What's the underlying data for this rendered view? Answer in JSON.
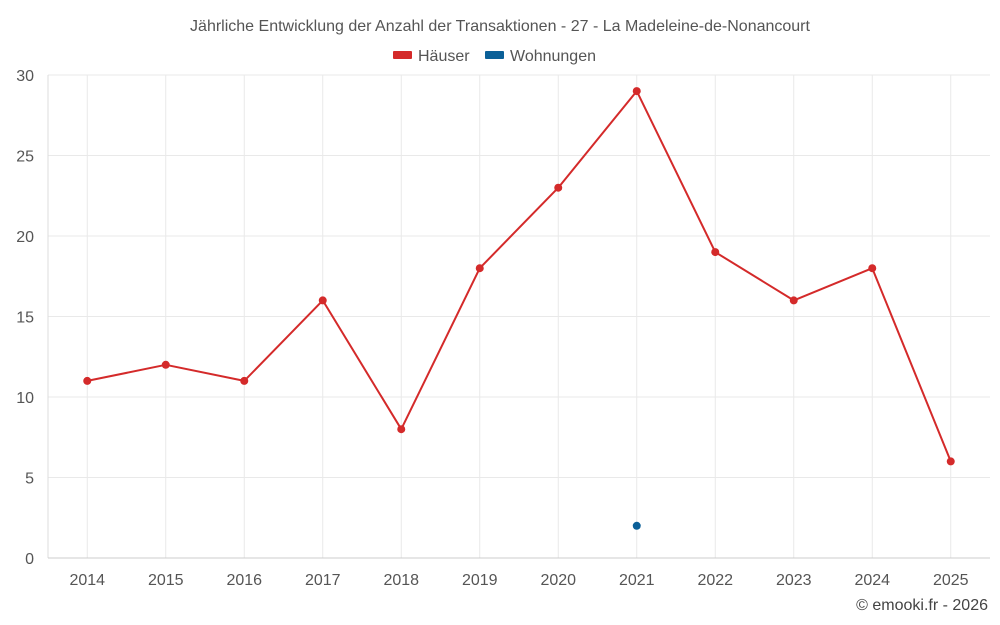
{
  "chart_data": {
    "type": "line",
    "title": "Jährliche Entwicklung der Anzahl der Transaktionen - 27 - La Madeleine-de-Nonancourt",
    "categories": [
      "2014",
      "2015",
      "2016",
      "2017",
      "2018",
      "2019",
      "2020",
      "2021",
      "2022",
      "2023",
      "2024",
      "2025"
    ],
    "series": [
      {
        "name": "Häuser",
        "color": "#d42a2a",
        "values": [
          11,
          12,
          11,
          16,
          8,
          18,
          23,
          29,
          19,
          16,
          18,
          6
        ]
      },
      {
        "name": "Wohnungen",
        "color": "#0b6098",
        "values": [
          null,
          null,
          null,
          null,
          null,
          null,
          null,
          2,
          null,
          null,
          null,
          null
        ]
      }
    ],
    "ylim": [
      0,
      30
    ],
    "yticks": [
      "0",
      "5",
      "10",
      "15",
      "20",
      "25",
      "30"
    ],
    "xlabel": "",
    "ylabel": "",
    "grid": true,
    "legend": "top-center"
  },
  "credit": "© emooki.fr - 2026"
}
